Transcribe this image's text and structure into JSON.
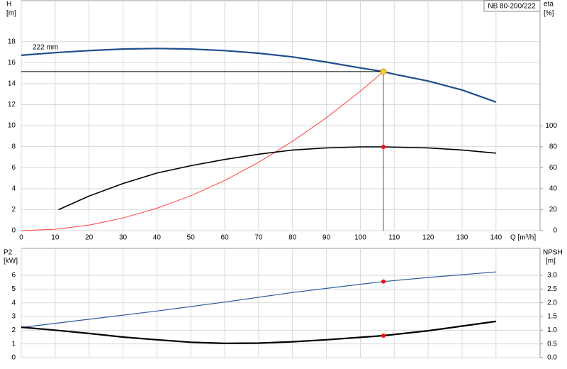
{
  "chart_data": [
    {
      "type": "line",
      "title": "NB 80-200/222",
      "ylabel": "H",
      "yunit": "[m]",
      "y2label": "eta",
      "y2unit": "[%]",
      "xlabel": "Q [m³/h]",
      "xlim": [
        0,
        153
      ],
      "xticks": [
        0,
        10,
        20,
        30,
        40,
        50,
        60,
        70,
        80,
        90,
        100,
        110,
        120,
        130,
        140
      ],
      "ylim": [
        0,
        21.9
      ],
      "yticks": [
        0,
        2,
        4,
        6,
        8,
        10,
        12,
        14,
        16,
        18
      ],
      "y2lim": [
        0,
        219.6
      ],
      "y2ticks": [
        0,
        20,
        40,
        60,
        80,
        100
      ],
      "grid": true,
      "series": [
        {
          "name": "222 mm",
          "color": "#1f4e8c",
          "width": 2.2,
          "axis": "y",
          "x": [
            0,
            10,
            20,
            30,
            40,
            50,
            60,
            70,
            80,
            90,
            100,
            106.8,
            110,
            120,
            130,
            140
          ],
          "values": [
            16.7,
            16.95,
            17.15,
            17.3,
            17.35,
            17.3,
            17.15,
            16.9,
            16.55,
            16.05,
            15.5,
            15.15,
            14.9,
            14.25,
            13.4,
            12.25
          ]
        },
        {
          "color": "#ff4040",
          "width": 1,
          "axis": "y",
          "x": [
            0,
            10,
            20,
            30,
            40,
            50,
            60,
            70,
            80,
            90,
            100,
            106.8
          ],
          "values": [
            0,
            0.13,
            0.53,
            1.2,
            2.13,
            3.32,
            4.78,
            6.51,
            8.5,
            10.76,
            13.28,
            15.15
          ]
        },
        {
          "color": "#000000",
          "width": 1.6,
          "axis": "y2",
          "x": [
            11,
            20,
            30,
            40,
            50,
            60,
            70,
            80,
            90,
            100,
            107,
            120,
            130,
            140
          ],
          "values": [
            20,
            33,
            45,
            55,
            62,
            68,
            73,
            77,
            79,
            80,
            80,
            79,
            77,
            74
          ]
        }
      ],
      "markers": [
        {
          "x": 106.8,
          "y": 15.15,
          "color": "#ffcc33",
          "axis": "y",
          "guides": true
        },
        {
          "x": 106.8,
          "y": 80,
          "color": "#ee1111",
          "axis": "y2"
        }
      ]
    },
    {
      "type": "line",
      "ylabel": "P2",
      "yunit": "[kW]",
      "y2label": "NPSH",
      "y2unit": "[m]",
      "xlim": [
        0,
        153
      ],
      "ylim": [
        0,
        7.97
      ],
      "yticks": [
        0,
        1,
        2,
        3,
        4,
        5,
        6
      ],
      "y2lim": [
        0,
        3.98
      ],
      "y2ticks": [
        {
          "value": 0,
          "label": "0.0"
        },
        0.5,
        {
          "value": 1,
          "label": "1.0"
        },
        1.5,
        {
          "value": 2,
          "label": "2.0"
        },
        2.5,
        {
          "value": 3,
          "label": "3.0"
        }
      ],
      "grid": true,
      "series": [
        {
          "color": "#2a5a9a",
          "width": 1.2,
          "axis": "y",
          "x": [
            0,
            20,
            40,
            60,
            80,
            100,
            106.8,
            120,
            140
          ],
          "values": [
            2.2,
            2.8,
            3.4,
            4.05,
            4.75,
            5.35,
            5.55,
            5.85,
            6.25
          ]
        },
        {
          "color": "#000000",
          "width": 2.2,
          "axis": "y2",
          "x": [
            0,
            10,
            20,
            30,
            40,
            50,
            60,
            70,
            80,
            90,
            100,
            106.8,
            120,
            130,
            140
          ],
          "values": [
            1.11,
            1.0,
            0.88,
            0.75,
            0.65,
            0.56,
            0.52,
            0.53,
            0.58,
            0.65,
            0.74,
            0.8,
            0.98,
            1.15,
            1.32
          ]
        }
      ],
      "markers": [
        {
          "x": 106.8,
          "y": 5.55,
          "color": "#ee1111",
          "axis": "y"
        },
        {
          "x": 106.8,
          "y": 0.8,
          "color": "#ee1111",
          "axis": "y2"
        }
      ]
    }
  ]
}
